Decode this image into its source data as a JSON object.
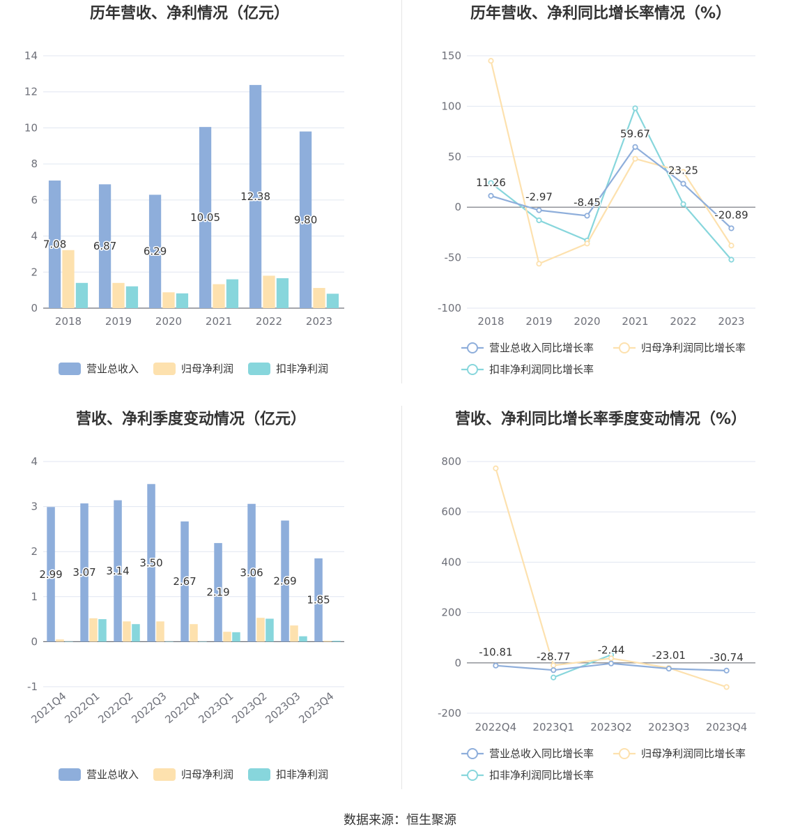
{
  "source_text": "数据来源：恒生聚源",
  "chart_data": [
    {
      "type": "bar",
      "title": "历年营收、净利情况（亿元）",
      "categories": [
        "2018",
        "2019",
        "2020",
        "2021",
        "2022",
        "2023"
      ],
      "series": [
        {
          "name": "营业总收入",
          "color": "#8eaedb",
          "values": [
            7.08,
            6.87,
            6.29,
            10.05,
            12.38,
            9.8
          ],
          "labels": [
            "7.08",
            "6.87",
            "6.29",
            "10.05",
            "12.38",
            "9.80"
          ]
        },
        {
          "name": "归母净利润",
          "color": "#fde1ae",
          "values": [
            3.22,
            1.4,
            0.88,
            1.33,
            1.8,
            1.12
          ]
        },
        {
          "name": "扣非净利润",
          "color": "#87d6dc",
          "values": [
            1.4,
            1.21,
            0.82,
            1.6,
            1.66,
            0.8
          ]
        }
      ],
      "yticks": [
        "0",
        "2",
        "4",
        "6",
        "8",
        "10",
        "12",
        "14"
      ],
      "ylim": [
        0,
        14
      ],
      "grid": true,
      "legend": "bottom"
    },
    {
      "type": "line",
      "title": "历年营收、净利同比增长率情况（%）",
      "categories": [
        "2018",
        "2019",
        "2020",
        "2021",
        "2022",
        "2023"
      ],
      "series": [
        {
          "name": "营业总收入同比增长率",
          "color": "#8eaedb",
          "values": [
            11.26,
            -2.97,
            -8.45,
            59.67,
            23.25,
            -20.89
          ],
          "labels": [
            "11.26",
            "-2.97",
            "-8.45",
            "59.67",
            "23.25",
            "-20.89"
          ]
        },
        {
          "name": "归母净利润同比增长率",
          "color": "#fde1ae",
          "values": [
            145,
            -56,
            -36,
            48,
            35,
            -38
          ]
        },
        {
          "name": "扣非净利润同比增长率",
          "color": "#87d6dc",
          "values": [
            24,
            -13,
            -33,
            98,
            3,
            -52
          ]
        }
      ],
      "yticks": [
        "-100",
        "-50",
        "0",
        "50",
        "100",
        "150"
      ],
      "ylim": [
        -100,
        150
      ],
      "grid": true,
      "legend": "bottom"
    },
    {
      "type": "bar",
      "title": "营收、净利季度变动情况（亿元）",
      "categories": [
        "2021Q4",
        "2022Q1",
        "2022Q2",
        "2022Q3",
        "2022Q4",
        "2023Q1",
        "2023Q2",
        "2023Q3",
        "2023Q4"
      ],
      "series": [
        {
          "name": "营业总收入",
          "color": "#8eaedb",
          "values": [
            2.99,
            3.07,
            3.14,
            3.5,
            2.67,
            2.19,
            3.06,
            2.69,
            1.85
          ],
          "labels": [
            "2.99",
            "3.07",
            "3.14",
            "3.50",
            "2.67",
            "2.19",
            "3.06",
            "2.69",
            "1.85"
          ]
        },
        {
          "name": "归母净利润",
          "color": "#fde1ae",
          "values": [
            0.05,
            0.52,
            0.45,
            0.45,
            0.39,
            0.22,
            0.53,
            0.36,
            0.02
          ]
        },
        {
          "name": "扣非净利润",
          "color": "#87d6dc",
          "values": [
            0.0,
            0.5,
            0.39,
            0.0,
            0.0,
            0.21,
            0.51,
            0.12,
            0.02
          ]
        }
      ],
      "yticks": [
        "-1",
        "0",
        "1",
        "2",
        "3",
        "4"
      ],
      "ylim": [
        -1,
        4
      ],
      "grid": true,
      "legend": "bottom"
    },
    {
      "type": "line",
      "title": "营收、净利同比增长率季度变动情况（%）",
      "categories": [
        "2022Q4",
        "2023Q1",
        "2023Q2",
        "2023Q3",
        "2023Q4"
      ],
      "series": [
        {
          "name": "营业总收入同比增长率",
          "color": "#8eaedb",
          "values": [
            -10.81,
            -28.77,
            -2.44,
            -23.01,
            -30.74
          ],
          "labels": [
            "-10.81",
            "-28.77",
            "-2.44",
            "-23.01",
            "-30.74"
          ]
        },
        {
          "name": "归母净利润同比增长率",
          "color": "#fde1ae",
          "values": [
            773,
            -10,
            18,
            -20,
            -96
          ]
        },
        {
          "name": "扣非净利润同比增长率",
          "color": "#87d6dc",
          "values": [
            null,
            -58,
            32,
            null,
            null
          ]
        }
      ],
      "yticks": [
        "-200",
        "0",
        "200",
        "400",
        "600",
        "800"
      ],
      "ylim": [
        -200,
        800
      ],
      "grid": true,
      "legend": "bottom"
    }
  ]
}
